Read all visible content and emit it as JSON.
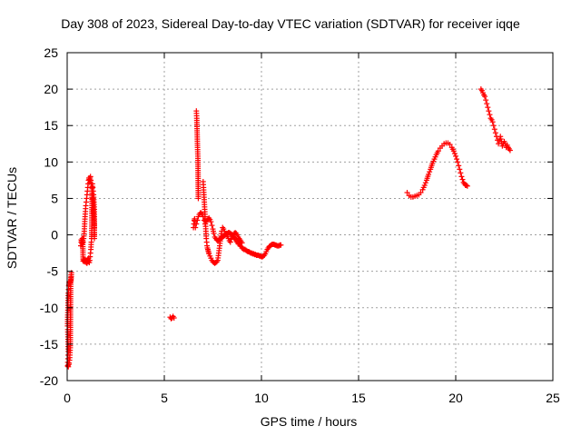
{
  "chart_data": {
    "type": "scatter",
    "title": "Day 308 of 2023, Sidereal Day-to-day VTEC variation (SDTVAR) for receiver iqqe",
    "xlabel": "GPS time / hours",
    "ylabel": "SDTVAR / TECUs",
    "xlim": [
      0,
      25
    ],
    "ylim": [
      -20,
      25
    ],
    "xticks": [
      0,
      5,
      10,
      15,
      20,
      25
    ],
    "yticks": [
      -20,
      -15,
      -10,
      -5,
      0,
      5,
      10,
      15,
      20,
      25
    ],
    "grid": true,
    "marker": "+",
    "color": "#ff0000",
    "series": [
      {
        "name": "SDTVAR",
        "segments": [
          {
            "x": [
              0.02,
              0.03,
              0.04,
              0.05,
              0.06,
              0.05,
              0.04,
              0.03,
              0.02,
              0.03,
              0.04,
              0.05,
              0.06,
              0.07,
              0.08,
              0.09,
              0.1,
              0.12,
              0.14,
              0.16,
              0.18,
              0.2,
              0.22,
              0.2,
              0.18,
              0.16,
              0.14,
              0.12,
              0.1,
              0.08,
              0.06,
              0.04
            ],
            "y": [
              -18.0,
              -17.5,
              -17.0,
              -16.5,
              -16.0,
              -15.0,
              -14.0,
              -13.0,
              -12.5,
              -11.0,
              -10.0,
              -9.0,
              -8.0,
              -7.5,
              -7.0,
              -6.8,
              -6.5,
              -6.4,
              -6.5,
              -6.6,
              -6.5,
              -5.5,
              -5.2,
              -6.3,
              -6.8,
              -15.5,
              -16.5,
              -17.2,
              -17.6,
              -17.8,
              -18.1,
              -17.9
            ]
          },
          {
            "x": [
              0.7,
              0.72,
              0.75,
              0.78,
              0.8,
              0.82,
              0.85,
              0.88,
              0.9,
              0.92,
              0.94,
              0.96,
              0.98,
              1.0,
              1.02,
              1.04,
              1.06,
              1.08,
              1.1,
              1.12,
              1.14,
              1.16,
              1.18,
              1.2,
              1.22,
              1.24,
              1.26,
              1.28,
              1.3,
              1.32,
              1.34,
              1.36,
              1.38,
              1.4,
              1.4,
              1.4,
              1.4,
              1.4,
              1.4,
              1.38,
              1.36,
              1.34,
              1.32,
              1.3,
              1.28,
              1.26,
              1.24,
              1.22,
              1.2,
              1.18,
              1.16,
              1.14,
              1.12,
              1.1,
              1.08,
              1.06,
              1.04,
              1.02,
              1.0,
              0.98,
              0.96,
              0.94,
              0.92,
              0.9,
              0.88,
              0.86,
              0.84,
              0.82,
              0.8,
              0.78,
              0.76,
              0.74,
              0.72
            ],
            "y": [
              -1.5,
              -1.0,
              -0.8,
              -0.5,
              -0.8,
              -1.0,
              -0.5,
              0.5,
              1.5,
              2.5,
              3.2,
              4.0,
              4.5,
              5.0,
              5.5,
              6.0,
              6.5,
              7.0,
              7.5,
              7.8,
              7.6,
              7.2,
              7.8,
              8.0,
              7.5,
              7.0,
              6.5,
              6.0,
              5.5,
              5.0,
              4.0,
              3.0,
              2.0,
              1.0,
              0.0,
              -0.5,
              1.5,
              2.5,
              3.5,
              4.5,
              5.5,
              6.0,
              6.5,
              7.0,
              6.0,
              -0.5,
              -1.0,
              -2.0,
              -2.5,
              -3.0,
              -3.5,
              -3.8,
              -3.5,
              -3.2,
              -3.7,
              -3.4,
              -3.6,
              -3.9,
              -3.5,
              -3.8,
              -3.6,
              -3.5,
              -3.4,
              -3.7,
              -3.6,
              -3.5,
              -3.3,
              -3.6,
              -0.5,
              -0.8,
              -1.2,
              -1.0,
              -0.7
            ]
          },
          {
            "x": [
              5.3,
              5.35,
              5.4,
              5.45,
              5.5
            ],
            "y": [
              -11.3,
              -11.5,
              -11.4,
              -11.2,
              -11.4
            ]
          },
          {
            "x": [
              6.5,
              6.52,
              6.54,
              6.56,
              6.58,
              6.6,
              6.65,
              6.7,
              6.75,
              6.8,
              6.85,
              6.9,
              6.95,
              7.0,
              7.05,
              7.1,
              7.15,
              7.2,
              7.25,
              7.3,
              7.35,
              7.4,
              7.45,
              7.5,
              7.55,
              7.6,
              7.65,
              7.7,
              7.75,
              7.8,
              7.85,
              7.9,
              7.95,
              8.0,
              8.05,
              8.1,
              8.15,
              8.2,
              8.25,
              8.3,
              8.35,
              8.4,
              8.45,
              8.5,
              8.55,
              8.6,
              8.65,
              8.7,
              8.75,
              8.8,
              8.85,
              8.9,
              8.95,
              9.0,
              9.05,
              9.1,
              9.15,
              9.2,
              9.25,
              9.3,
              9.35,
              9.4,
              9.45,
              9.5,
              9.55,
              9.6,
              9.65,
              9.7,
              9.75,
              9.8,
              9.85,
              9.9,
              9.95,
              10.0,
              10.05,
              10.1,
              10.15,
              10.2,
              10.25,
              10.3,
              10.35,
              10.4,
              10.45,
              10.5,
              10.55,
              10.6,
              10.65,
              10.7,
              10.75,
              10.8,
              10.85,
              10.9,
              10.95,
              11.0
            ],
            "y": [
              1.0,
              1.5,
              2.0,
              2.2,
              1.5,
              1.0,
              1.5,
              2.0,
              2.5,
              2.8,
              3.0,
              3.0,
              2.8,
              2.5,
              2.0,
              1.5,
              1.8,
              2.0,
              2.2,
              2.3,
              2.1,
              1.8,
              1.3,
              0.8,
              0.2,
              -0.3,
              -0.5,
              -0.7,
              -0.8,
              -0.7,
              -0.6,
              -0.5,
              -0.4,
              -0.3,
              -0.2,
              -0.1,
              0.0,
              0.1,
              0.2,
              0.3,
              0.3,
              0.2,
              0.1,
              0.0,
              -0.2,
              -0.4,
              -0.6,
              -0.8,
              -1.0,
              -1.2,
              -1.3,
              -1.5,
              -1.6,
              -1.8,
              -1.9,
              -2.0,
              -2.0,
              -2.1,
              -2.2,
              -2.3,
              -2.3,
              -2.4,
              -2.5,
              -2.5,
              -2.6,
              -2.6,
              -2.7,
              -2.7,
              -2.8,
              -2.8,
              -2.8,
              -2.9,
              -2.9,
              -3.0,
              -3.0,
              -2.9,
              -2.8,
              -2.6,
              -2.3,
              -2.0,
              -1.8,
              -1.6,
              -1.5,
              -1.4,
              -1.3,
              -1.3,
              -1.3,
              -1.4,
              -1.4,
              -1.5,
              -1.5,
              -1.5,
              -1.4,
              -1.4
            ]
          },
          {
            "x": [
              6.65,
              6.67,
              6.69,
              6.71,
              6.73,
              6.75
            ],
            "y": [
              17.0,
              16.0,
              14.0,
              12.0,
              10.5,
              5.0
            ]
          },
          {
            "x": [
              7.0,
              7.02,
              7.04,
              7.06,
              7.08,
              7.1,
              7.12,
              7.14,
              7.16,
              7.18,
              7.2,
              7.22,
              7.24,
              7.26,
              7.28,
              7.3,
              7.35,
              7.4,
              7.45,
              7.5,
              7.55,
              7.6,
              7.65,
              7.7,
              7.75,
              7.8,
              7.85,
              7.9,
              7.95,
              8.0,
              8.05,
              8.1,
              8.15,
              8.2,
              8.25,
              8.3,
              8.35,
              8.4,
              8.45,
              8.5,
              8.55,
              8.6,
              8.65,
              8.7,
              8.75,
              8.8,
              8.85,
              8.9,
              8.95,
              9.0
            ],
            "y": [
              7.3,
              6.5,
              5.5,
              4.5,
              3.5,
              2.5,
              1.5,
              0.5,
              -0.5,
              -1.0,
              -1.5,
              -1.8,
              -2.0,
              -2.2,
              -2.4,
              -2.6,
              -2.9,
              -3.2,
              -3.5,
              -3.7,
              -3.8,
              -3.9,
              -3.8,
              -3.7,
              -3.5,
              -2.5,
              -1.5,
              -0.5,
              0.5,
              1.0,
              0.8,
              0.5,
              0.2,
              0.0,
              -0.2,
              -0.5,
              -0.8,
              -1.0,
              -0.6,
              -0.3,
              0.0,
              0.2,
              0.3,
              0.2,
              0.0,
              -0.3,
              -0.5,
              -0.7,
              -0.9,
              -1.1
            ]
          },
          {
            "x": [
              17.5,
              17.6,
              17.7,
              17.8,
              17.9,
              18.0,
              18.1,
              18.2,
              18.3,
              18.4,
              18.5,
              18.6,
              18.7,
              18.8,
              18.9,
              19.0,
              19.1,
              19.2,
              19.3,
              19.4,
              19.5,
              19.6,
              19.7,
              19.8,
              19.9,
              20.0,
              20.05,
              20.1,
              20.15,
              20.2,
              20.25,
              20.3,
              20.35,
              20.4,
              20.45,
              20.5,
              20.55,
              20.6
            ],
            "y": [
              5.8,
              5.4,
              5.2,
              5.2,
              5.3,
              5.4,
              5.5,
              5.8,
              6.2,
              6.8,
              7.5,
              8.3,
              9.0,
              9.8,
              10.4,
              11.0,
              11.5,
              11.9,
              12.2,
              12.5,
              12.6,
              12.6,
              12.4,
              12.0,
              11.5,
              10.8,
              10.4,
              10.0,
              9.5,
              9.0,
              8.5,
              8.0,
              7.6,
              7.2,
              7.0,
              6.8,
              6.8,
              6.7
            ]
          },
          {
            "x": [
              21.3,
              21.35,
              21.4,
              21.45,
              21.5,
              21.55,
              21.6,
              21.65,
              21.7,
              21.75,
              21.8,
              21.85,
              21.9,
              21.95,
              22.0,
              22.05,
              22.1,
              22.15,
              22.2,
              22.25,
              22.3,
              22.35,
              22.4,
              22.45,
              22.5,
              22.55,
              22.6,
              22.65,
              22.7,
              22.75,
              22.8
            ],
            "y": [
              20.0,
              19.8,
              19.5,
              19.2,
              19.0,
              18.5,
              18.0,
              17.5,
              17.0,
              16.5,
              16.0,
              15.8,
              15.5,
              15.0,
              14.5,
              14.0,
              13.5,
              13.0,
              12.5,
              13.0,
              13.5,
              12.8,
              12.2,
              12.5,
              12.8,
              12.5,
              12.0,
              12.3,
              12.0,
              11.8,
              11.6
            ]
          }
        ]
      }
    ]
  }
}
